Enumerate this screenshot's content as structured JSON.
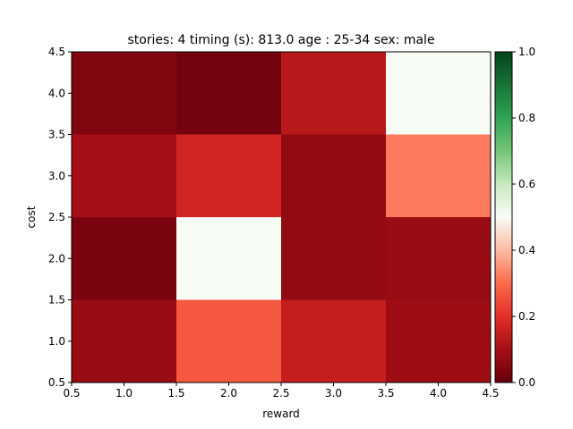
{
  "chart_data": {
    "type": "heatmap",
    "title": "stories: 4 timing (s): 813.0 age : 25-34 sex: male",
    "xlabel": "reward",
    "ylabel": "cost",
    "x_categories": [
      1,
      2,
      3,
      4
    ],
    "y_categories": [
      1,
      2,
      3,
      4
    ],
    "xlim": [
      0.5,
      4.5
    ],
    "ylim": [
      0.5,
      4.5
    ],
    "x_ticks": [
      "0.5",
      "1.0",
      "1.5",
      "2.0",
      "2.5",
      "3.0",
      "3.5",
      "4.0",
      "4.5"
    ],
    "y_ticks": [
      "0.5",
      "1.0",
      "1.5",
      "2.0",
      "2.5",
      "3.0",
      "3.5",
      "4.0",
      "4.5"
    ],
    "values": [
      [
        0.08,
        0.27,
        0.15,
        0.09
      ],
      [
        0.03,
        0.5,
        0.07,
        0.08
      ],
      [
        0.1,
        0.17,
        0.07,
        0.32
      ],
      [
        0.04,
        0.02,
        0.13,
        0.5
      ]
    ],
    "colormap": "RdGn diverging (dark red at 0, white at 0.5, dark green at 1)",
    "colorbar": {
      "range": [
        0.0,
        1.0
      ],
      "ticks": [
        "0.0",
        "0.2",
        "0.4",
        "0.6",
        "0.8",
        "1.0"
      ]
    },
    "grid": false
  }
}
